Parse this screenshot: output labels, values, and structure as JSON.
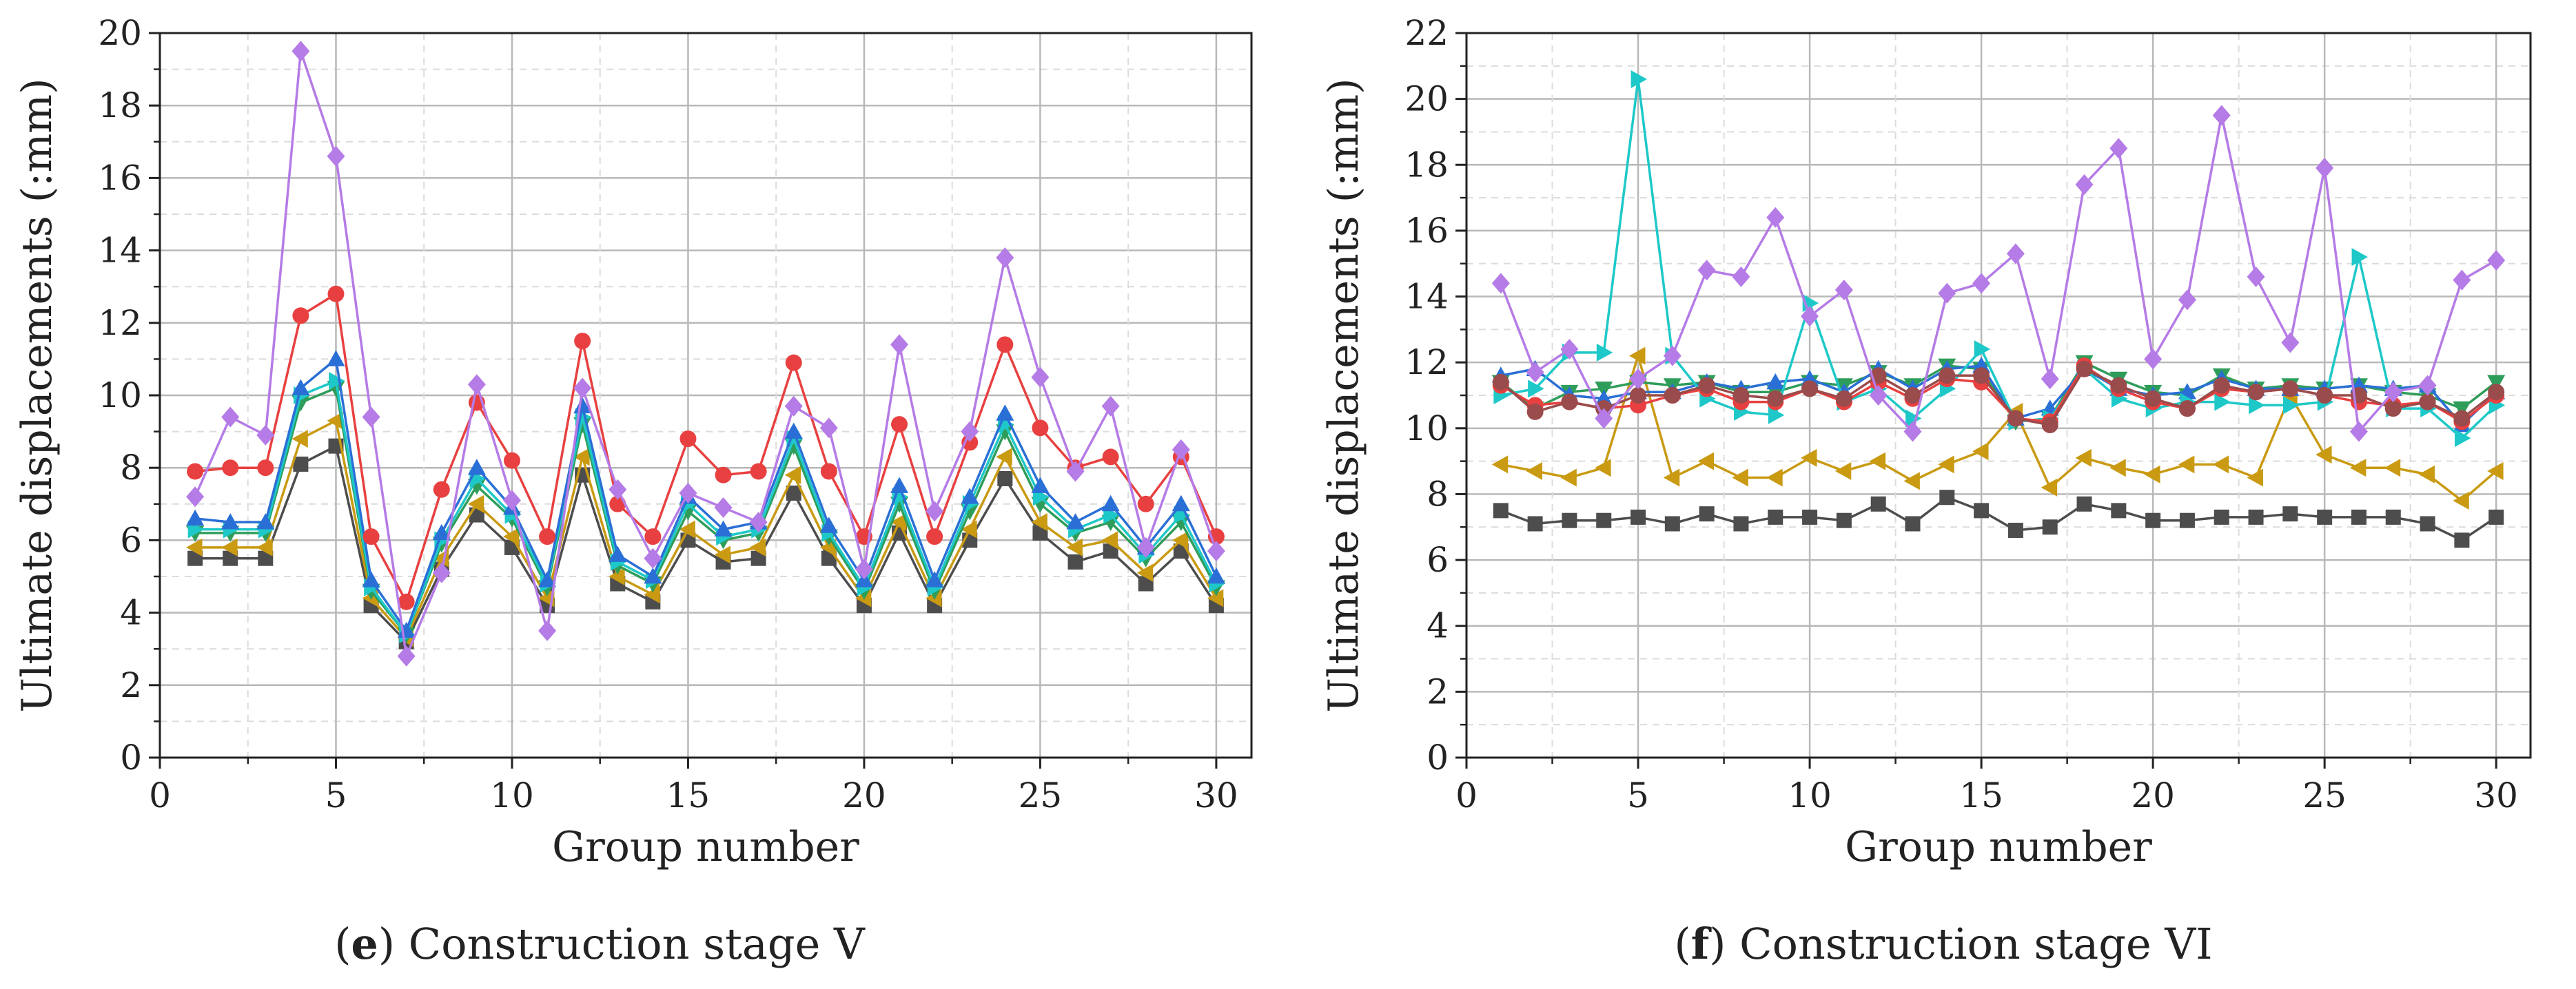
{
  "chart_data": [
    {
      "type": "line",
      "caption_letter": "e",
      "caption_text": " Construction stage V",
      "xlabel": "Group number",
      "ylabel": "Ultimate displacements (:mm)",
      "xlim": [
        0,
        31
      ],
      "ylim": [
        0,
        20
      ],
      "xticks": [
        0,
        5,
        10,
        15,
        20,
        25,
        30
      ],
      "yticks": [
        0,
        2,
        4,
        6,
        8,
        10,
        12,
        14,
        16,
        18,
        20
      ],
      "grid": true,
      "x": [
        1,
        2,
        3,
        4,
        5,
        6,
        7,
        8,
        9,
        10,
        11,
        12,
        13,
        14,
        15,
        16,
        17,
        18,
        19,
        20,
        21,
        22,
        23,
        24,
        25,
        26,
        27,
        28,
        29,
        30
      ],
      "series": [
        {
          "name": "gray-square",
          "color": "#4d4d4d",
          "marker": "square",
          "values": [
            5.5,
            5.5,
            5.5,
            8.1,
            8.6,
            4.2,
            3.2,
            5.2,
            6.7,
            5.8,
            4.2,
            7.8,
            4.8,
            4.3,
            6.0,
            5.4,
            5.5,
            7.3,
            5.5,
            4.2,
            6.2,
            4.2,
            6.0,
            7.7,
            6.2,
            5.4,
            5.7,
            4.8,
            5.7,
            4.2
          ]
        },
        {
          "name": "gold-left-triangle",
          "color": "#c99a12",
          "marker": "triangle-left",
          "values": [
            5.8,
            5.8,
            5.8,
            8.8,
            9.3,
            4.4,
            3.3,
            5.5,
            7.0,
            6.1,
            4.4,
            8.3,
            5.0,
            4.5,
            6.3,
            5.6,
            5.8,
            7.8,
            5.8,
            4.4,
            6.5,
            4.4,
            6.3,
            8.3,
            6.5,
            5.8,
            6.0,
            5.1,
            6.0,
            4.4
          ]
        },
        {
          "name": "green-down-triangle",
          "color": "#2e9d5a",
          "marker": "triangle-down",
          "values": [
            6.2,
            6.2,
            6.2,
            9.8,
            10.2,
            4.6,
            3.4,
            5.9,
            7.5,
            6.6,
            4.7,
            9.2,
            5.3,
            4.8,
            6.8,
            6.0,
            6.2,
            8.6,
            6.1,
            4.6,
            7.0,
            4.6,
            6.8,
            9.0,
            7.0,
            6.2,
            6.5,
            5.5,
            6.5,
            4.7
          ]
        },
        {
          "name": "cyan-right-triangle",
          "color": "#1ec8c8",
          "marker": "triangle-right",
          "values": [
            6.3,
            6.3,
            6.3,
            10.0,
            10.4,
            4.7,
            3.4,
            6.0,
            7.7,
            6.7,
            4.8,
            9.4,
            5.4,
            4.9,
            7.0,
            6.1,
            6.3,
            8.8,
            6.2,
            4.7,
            7.2,
            4.7,
            7.0,
            9.2,
            7.2,
            6.3,
            6.7,
            5.6,
            6.7,
            4.8
          ]
        },
        {
          "name": "blue-up-triangle",
          "color": "#2a6fd6",
          "marker": "triangle-up",
          "values": [
            6.6,
            6.5,
            6.5,
            10.2,
            11.0,
            4.9,
            3.5,
            6.2,
            8.0,
            6.9,
            4.9,
            9.7,
            5.6,
            5.0,
            7.2,
            6.3,
            6.5,
            9.0,
            6.4,
            4.9,
            7.5,
            4.9,
            7.2,
            9.5,
            7.5,
            6.5,
            7.0,
            5.8,
            7.0,
            5.0
          ]
        },
        {
          "name": "red-circle",
          "color": "#e84040",
          "marker": "circle",
          "values": [
            7.9,
            8.0,
            8.0,
            12.2,
            12.8,
            6.1,
            4.3,
            7.4,
            9.8,
            8.2,
            6.1,
            11.5,
            7.0,
            6.1,
            8.8,
            7.8,
            7.9,
            10.9,
            7.9,
            6.1,
            9.2,
            6.1,
            8.7,
            11.4,
            9.1,
            8.0,
            8.3,
            7.0,
            8.3,
            6.1
          ]
        },
        {
          "name": "violet-diamond",
          "color": "#b57be6",
          "marker": "diamond",
          "values": [
            7.2,
            9.4,
            8.9,
            19.5,
            16.6,
            9.4,
            2.8,
            5.1,
            10.3,
            7.1,
            3.5,
            10.2,
            7.4,
            5.5,
            7.3,
            6.9,
            6.5,
            9.7,
            9.1,
            5.2,
            11.4,
            6.8,
            9.0,
            13.8,
            10.5,
            7.9,
            9.7,
            5.8,
            8.5,
            5.7
          ]
        }
      ]
    },
    {
      "type": "line",
      "caption_letter": "f",
      "caption_text": " Construction stage VI",
      "xlabel": "Group number",
      "ylabel": "Ultimate displacements (:mm)",
      "xlim": [
        0,
        31
      ],
      "ylim": [
        0,
        22
      ],
      "xticks": [
        0,
        5,
        10,
        15,
        20,
        25,
        30
      ],
      "yticks": [
        0,
        2,
        4,
        6,
        8,
        10,
        12,
        14,
        16,
        18,
        20,
        22
      ],
      "grid": true,
      "x": [
        1,
        2,
        3,
        4,
        5,
        6,
        7,
        8,
        9,
        10,
        11,
        12,
        13,
        14,
        15,
        16,
        17,
        18,
        19,
        20,
        21,
        22,
        23,
        24,
        25,
        26,
        27,
        28,
        29,
        30
      ],
      "series": [
        {
          "name": "gray-square",
          "color": "#4d4d4d",
          "marker": "square",
          "values": [
            7.5,
            7.1,
            7.2,
            7.2,
            7.3,
            7.1,
            7.4,
            7.1,
            7.3,
            7.3,
            7.2,
            7.7,
            7.1,
            7.9,
            7.5,
            6.9,
            7.0,
            7.7,
            7.5,
            7.2,
            7.2,
            7.3,
            7.3,
            7.4,
            7.3,
            7.3,
            7.3,
            7.1,
            6.6,
            7.3
          ]
        },
        {
          "name": "gold-left-triangle",
          "color": "#c99a12",
          "marker": "triangle-left",
          "values": [
            8.9,
            8.7,
            8.5,
            8.8,
            12.2,
            8.5,
            9.0,
            8.5,
            8.5,
            9.1,
            8.7,
            9.0,
            8.4,
            8.9,
            9.3,
            10.5,
            8.2,
            9.1,
            8.8,
            8.6,
            8.9,
            8.9,
            8.5,
            11.0,
            9.2,
            8.8,
            8.8,
            8.6,
            7.8,
            8.7
          ]
        },
        {
          "name": "green-down-triangle",
          "color": "#2e9d5a",
          "marker": "triangle-down",
          "values": [
            11.4,
            10.6,
            11.1,
            11.2,
            11.4,
            11.3,
            11.4,
            11.1,
            11.1,
            11.4,
            11.3,
            11.7,
            11.3,
            11.9,
            11.8,
            10.2,
            10.3,
            12.0,
            11.5,
            11.1,
            11.0,
            11.6,
            11.2,
            11.3,
            11.2,
            11.3,
            11.1,
            11.0,
            10.6,
            11.4
          ]
        },
        {
          "name": "blue-up-triangle",
          "color": "#2a6fd6",
          "marker": "triangle-up",
          "values": [
            11.6,
            11.8,
            11.0,
            10.9,
            11.1,
            11.1,
            11.4,
            11.2,
            11.4,
            11.5,
            11.1,
            11.8,
            11.2,
            11.8,
            11.9,
            10.3,
            10.6,
            11.8,
            11.2,
            11.0,
            11.1,
            11.5,
            11.2,
            11.2,
            11.2,
            11.3,
            11.2,
            11.3,
            10.1,
            11.1
          ]
        },
        {
          "name": "cyan-right-triangle",
          "color": "#1ec8c8",
          "marker": "triangle-right",
          "values": [
            11.0,
            11.2,
            12.3,
            12.3,
            20.6,
            12.2,
            10.9,
            10.5,
            10.4,
            13.8,
            10.8,
            11.2,
            10.3,
            11.2,
            12.4,
            10.2,
            10.3,
            11.8,
            10.9,
            10.6,
            10.8,
            10.8,
            10.7,
            10.7,
            10.8,
            15.2,
            10.6,
            10.6,
            9.7,
            10.7
          ]
        },
        {
          "name": "red-circle",
          "color": "#e84040",
          "marker": "circle",
          "values": [
            11.3,
            10.7,
            10.8,
            10.6,
            10.7,
            11.0,
            11.2,
            10.8,
            10.8,
            11.2,
            10.8,
            11.4,
            10.9,
            11.5,
            11.4,
            10.3,
            10.2,
            11.9,
            11.2,
            10.8,
            10.6,
            11.2,
            11.1,
            11.2,
            11.0,
            10.8,
            10.7,
            10.8,
            10.2,
            11.0
          ]
        },
        {
          "name": "brown-circle",
          "color": "#9a4b4b",
          "marker": "circle",
          "values": [
            11.4,
            10.5,
            10.8,
            10.6,
            11.0,
            11.0,
            11.3,
            11.0,
            10.9,
            11.2,
            10.9,
            11.6,
            11.0,
            11.6,
            11.6,
            10.3,
            10.1,
            11.8,
            11.3,
            10.9,
            10.6,
            11.3,
            11.1,
            11.2,
            11.0,
            11.0,
            10.6,
            10.8,
            10.3,
            11.1
          ]
        },
        {
          "name": "violet-diamond",
          "color": "#b57be6",
          "marker": "diamond",
          "values": [
            14.4,
            11.7,
            12.4,
            10.3,
            11.5,
            12.2,
            14.8,
            14.6,
            16.4,
            13.4,
            14.2,
            11.0,
            9.9,
            14.1,
            14.4,
            15.3,
            11.5,
            17.4,
            18.5,
            12.1,
            13.9,
            19.5,
            14.6,
            12.6,
            17.9,
            9.9,
            11.1,
            11.3,
            14.5,
            15.1
          ]
        }
      ]
    }
  ]
}
